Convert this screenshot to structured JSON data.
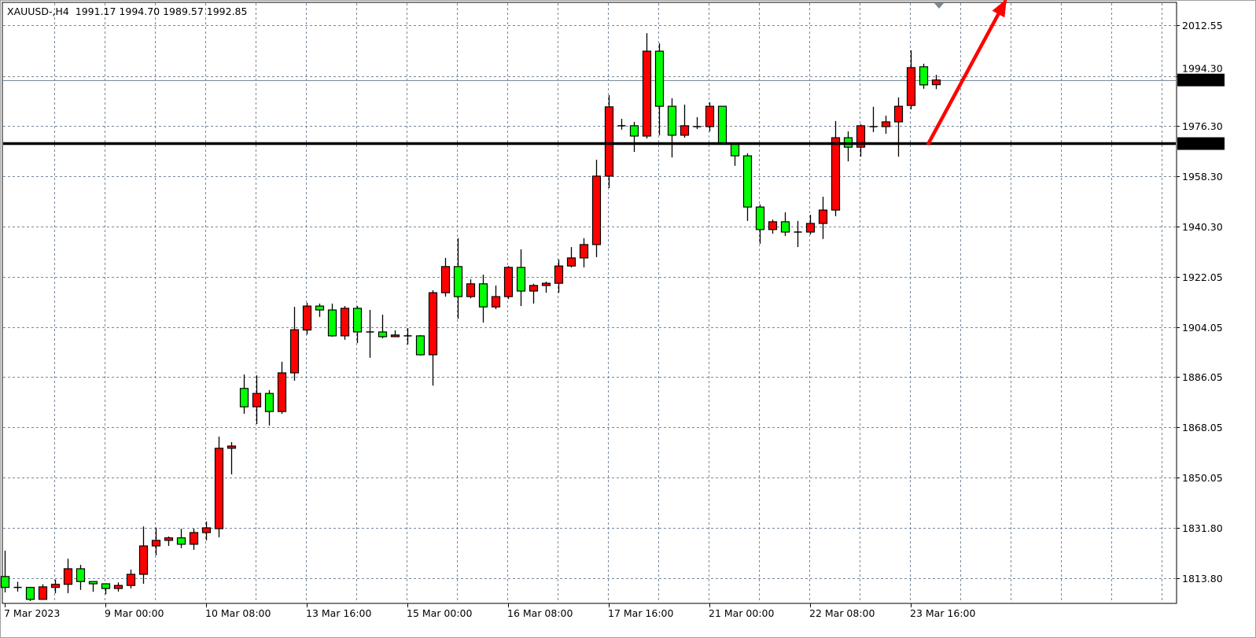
{
  "header": {
    "symbol": "XAUUSD-,H4",
    "ohlc": "1991.17 1994.70 1989.57 1992.85"
  },
  "colors": {
    "bull_candle": "#ff0000",
    "bear_candle": "#00ff00",
    "grid": "#778899",
    "level_line": "#000000",
    "arrow": "#ff0000",
    "bid_line": "#778899"
  },
  "chart_data": {
    "type": "candlestick",
    "timeframe": "H4",
    "ylim": [
      1800.5,
      2021.6
    ],
    "grid": true,
    "y_ticks": [
      "2012.55",
      "1994.30",
      "1976.30",
      "1958.30",
      "1940.30",
      "1922.05",
      "1904.05",
      "1886.05",
      "1868.05",
      "1850.05",
      "1831.80",
      "1813.80"
    ],
    "x_tick_labels": [
      {
        "label": "7 Mar 2023",
        "candle": 0
      },
      {
        "label": "9 Mar 00:00",
        "candle": 8
      },
      {
        "label": "10 Mar 08:00",
        "candle": 16
      },
      {
        "label": "13 Mar 16:00",
        "candle": 24
      },
      {
        "label": "15 Mar 00:00",
        "candle": 32
      },
      {
        "label": "16 Mar 08:00",
        "candle": 40
      },
      {
        "label": "17 Mar 16:00",
        "candle": 48
      },
      {
        "label": "21 Mar 00:00",
        "candle": 56
      },
      {
        "label": "22 Mar 08:00",
        "candle": 64
      },
      {
        "label": "23 Mar 16:00",
        "candle": 72
      }
    ],
    "candles_ohlc": [
      [
        1814.4,
        1823.7,
        1808.7,
        1810.5
      ],
      [
        1810.5,
        1812.5,
        1809.0,
        1810.5
      ],
      [
        1810.5,
        1810.7,
        1805.6,
        1806.2
      ],
      [
        1806.2,
        1811.6,
        1806.2,
        1810.7
      ],
      [
        1810.5,
        1813.3,
        1808.4,
        1811.6
      ],
      [
        1811.6,
        1820.8,
        1808.4,
        1817.2
      ],
      [
        1817.2,
        1818.6,
        1809.6,
        1812.6
      ],
      [
        1812.6,
        1812.6,
        1808.9,
        1811.8
      ],
      [
        1811.8,
        1812.0,
        1808.0,
        1810.1
      ],
      [
        1810.1,
        1812.3,
        1809.0,
        1811.2
      ],
      [
        1811.2,
        1816.9,
        1810.1,
        1815.2
      ],
      [
        1815.2,
        1832.4,
        1811.8,
        1825.4
      ],
      [
        1825.4,
        1832.0,
        1822.0,
        1827.4
      ],
      [
        1827.4,
        1828.8,
        1825.4,
        1828.3
      ],
      [
        1828.3,
        1831.6,
        1824.6,
        1826.0
      ],
      [
        1826.0,
        1831.6,
        1824.0,
        1830.2
      ],
      [
        1830.2,
        1834.2,
        1827.4,
        1831.9
      ],
      [
        1831.6,
        1864.7,
        1828.5,
        1860.5
      ],
      [
        1860.5,
        1862.7,
        1851.1,
        1861.3
      ],
      [
        1882.0,
        1887.0,
        1872.9,
        1875.4
      ],
      [
        1875.4,
        1886.7,
        1869.2,
        1880.2
      ],
      [
        1880.2,
        1881.4,
        1868.7,
        1873.7
      ],
      [
        1873.7,
        1891.6,
        1872.9,
        1887.6
      ],
      [
        1887.6,
        1911.3,
        1884.8,
        1903.1
      ],
      [
        1903.0,
        1912.8,
        1901.4,
        1911.6
      ],
      [
        1911.6,
        1912.5,
        1907.7,
        1910.2
      ],
      [
        1910.2,
        1912.5,
        1900.6,
        1900.9
      ],
      [
        1900.9,
        1911.6,
        1899.5,
        1910.8
      ],
      [
        1910.8,
        1911.6,
        1898.3,
        1902.3
      ],
      [
        1902.3,
        1910.2,
        1893.0,
        1902.3
      ],
      [
        1902.3,
        1908.5,
        1900.0,
        1900.6
      ],
      [
        1900.6,
        1902.9,
        1900.6,
        1901.2
      ],
      [
        1900.9,
        1903.7,
        1897.8,
        1900.9
      ],
      [
        1900.9,
        1901.2,
        1893.8,
        1894.1
      ],
      [
        1894.1,
        1917.3,
        1883.0,
        1916.4
      ],
      [
        1916.4,
        1928.9,
        1915.0,
        1925.8
      ],
      [
        1925.8,
        1936.0,
        1907.0,
        1915.0
      ],
      [
        1915.0,
        1921.2,
        1914.4,
        1919.6
      ],
      [
        1919.6,
        1922.9,
        1905.7,
        1911.3
      ],
      [
        1911.3,
        1919.0,
        1910.5,
        1915.0
      ],
      [
        1915.0,
        1926.0,
        1914.1,
        1925.5
      ],
      [
        1925.5,
        1932.0,
        1911.6,
        1917.0
      ],
      [
        1917.0,
        1919.6,
        1912.5,
        1919.0
      ],
      [
        1919.0,
        1920.4,
        1916.4,
        1919.8
      ],
      [
        1919.8,
        1928.3,
        1916.4,
        1926.0
      ],
      [
        1926.0,
        1932.8,
        1925.5,
        1928.9
      ],
      [
        1928.9,
        1936.0,
        1925.5,
        1933.7
      ],
      [
        1933.7,
        1964.2,
        1929.2,
        1958.3
      ],
      [
        1958.3,
        1987.4,
        1954.0,
        1983.2
      ],
      [
        1976.4,
        1978.9,
        1975.0,
        1976.4
      ],
      [
        1976.4,
        1977.8,
        1967.0,
        1972.7
      ],
      [
        1972.7,
        2009.7,
        1971.8,
        2003.2
      ],
      [
        2003.2,
        2006.0,
        1973.0,
        1983.4
      ],
      [
        1983.4,
        1986.3,
        1965.0,
        1973.0
      ],
      [
        1973.0,
        1984.0,
        1972.1,
        1976.4
      ],
      [
        1976.1,
        1979.5,
        1975.2,
        1976.1
      ],
      [
        1976.1,
        1984.8,
        1974.4,
        1983.4
      ],
      [
        1983.4,
        1983.4,
        1969.9,
        1969.9
      ],
      [
        1969.9,
        1970.2,
        1962.0,
        1965.6
      ],
      [
        1965.6,
        1966.5,
        1942.2,
        1947.2
      ],
      [
        1947.2,
        1948.1,
        1934.0,
        1939.1
      ],
      [
        1939.1,
        1942.7,
        1937.6,
        1941.9
      ],
      [
        1941.9,
        1945.3,
        1936.8,
        1938.2
      ],
      [
        1938.2,
        1942.2,
        1932.8,
        1938.2
      ],
      [
        1938.2,
        1944.4,
        1937.3,
        1941.3
      ],
      [
        1941.3,
        1950.9,
        1935.7,
        1946.1
      ],
      [
        1946.1,
        1978.1,
        1943.9,
        1972.1
      ],
      [
        1972.1,
        1974.4,
        1963.6,
        1968.7
      ],
      [
        1968.7,
        1977.0,
        1965.3,
        1976.4
      ],
      [
        1976.1,
        1983.2,
        1974.1,
        1976.1
      ],
      [
        1976.1,
        1980.0,
        1973.5,
        1977.8
      ],
      [
        1977.8,
        1986.6,
        1965.3,
        1983.4
      ],
      [
        1983.7,
        2003.5,
        1982.3,
        1997.3
      ],
      [
        1997.6,
        1998.7,
        1989.7,
        1991.1
      ],
      [
        1991.17,
        1994.7,
        1989.57,
        1992.85
      ]
    ],
    "horizontal_level": {
      "price": 1970.0,
      "label": "1970.00"
    },
    "bid": {
      "price": 1992.85,
      "label": "1992.85"
    },
    "arrow": {
      "from_candle": 73.4,
      "from_price": 1970.0,
      "to_candle": 79.5,
      "to_price": 2021.0
    }
  }
}
